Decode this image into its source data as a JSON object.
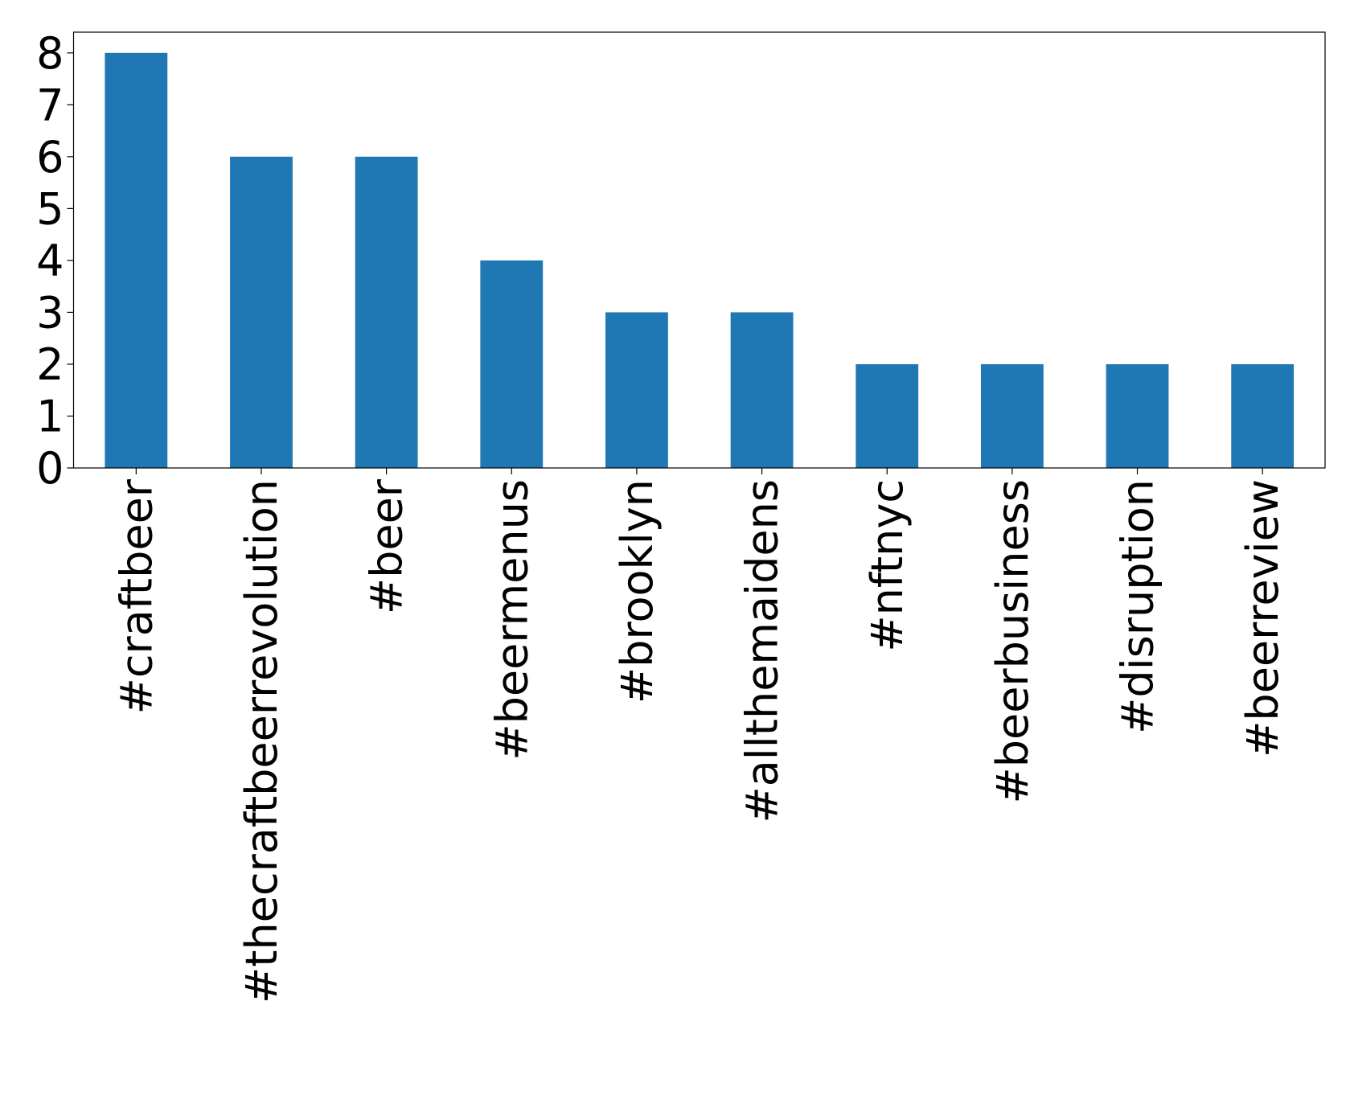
{
  "chart_data": {
    "type": "bar",
    "categories": [
      "#craftbeer",
      "#thecraftbeerrevolution",
      "#beer",
      "#beermenus",
      "#brooklyn",
      "#allthemaidens",
      "#nftnyc",
      "#beerbusiness",
      "#disruption",
      "#beerreview"
    ],
    "values": [
      8,
      6,
      6,
      4,
      3,
      3,
      2,
      2,
      2,
      2
    ],
    "color": "#1f77b4",
    "ylim": [
      0,
      8.4
    ],
    "yticks": [
      0,
      1,
      2,
      3,
      4,
      5,
      6,
      7,
      8
    ],
    "grid": false
  }
}
